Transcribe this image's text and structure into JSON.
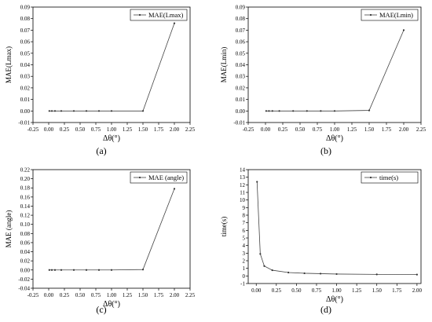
{
  "chart_data": [
    {
      "type": "line",
      "caption": "(a)",
      "xlabel": "Δθ(°)",
      "ylabel": "MAE(Lmax)",
      "legend": "MAE(Lmax)",
      "legend_position": "top-right",
      "xlim": [
        -0.25,
        2.25
      ],
      "ylim": [
        -0.01,
        0.09
      ],
      "xticks": [
        -0.25,
        0,
        0.25,
        0.5,
        0.75,
        1,
        1.25,
        1.5,
        1.75,
        2,
        2.25
      ],
      "xtick_labels": [
        "-0.25",
        "0.00",
        "0.25",
        "0.50",
        "0.75",
        "1.00",
        "1.25",
        "1.50",
        "1.75",
        "2.00",
        "2.25"
      ],
      "yticks": [
        -0.01,
        0,
        0.01,
        0.02,
        0.03,
        0.04,
        0.05,
        0.06,
        0.07,
        0.08,
        0.09
      ],
      "ytick_labels": [
        "-0.01",
        "0.00",
        "0.01",
        "0.02",
        "0.03",
        "0.04",
        "0.05",
        "0.06",
        "0.07",
        "0.08",
        "0.09"
      ],
      "x": [
        0.01,
        0.05,
        0.1,
        0.2,
        0.4,
        0.6,
        0.8,
        1.0,
        1.5,
        2.0
      ],
      "y": [
        0,
        0,
        0,
        0,
        0,
        0,
        0,
        0,
        0,
        0.076
      ],
      "grid": false
    },
    {
      "type": "line",
      "caption": "(b)",
      "xlabel": "Δθ(°)",
      "ylabel": "MAE(Lmin)",
      "legend": "MAE(Lmin)",
      "legend_position": "top-right",
      "xlim": [
        -0.25,
        2.25
      ],
      "ylim": [
        -0.01,
        0.09
      ],
      "xticks": [
        -0.25,
        0,
        0.25,
        0.5,
        0.75,
        1,
        1.25,
        1.5,
        1.75,
        2,
        2.25
      ],
      "xtick_labels": [
        "-0.25",
        "0.00",
        "0.25",
        "0.50",
        "0.75",
        "1.00",
        "1.25",
        "1.50",
        "1.75",
        "2.00",
        "2.25"
      ],
      "yticks": [
        -0.01,
        0,
        0.01,
        0.02,
        0.03,
        0.04,
        0.05,
        0.06,
        0.07,
        0.08,
        0.09
      ],
      "ytick_labels": [
        "-0.01",
        "0.00",
        "0.01",
        "0.02",
        "0.03",
        "0.04",
        "0.05",
        "0.06",
        "0.07",
        "0.08",
        "0.09"
      ],
      "x": [
        0.01,
        0.05,
        0.1,
        0.2,
        0.4,
        0.6,
        0.8,
        1.0,
        1.5,
        2.0
      ],
      "y": [
        0,
        0,
        0,
        0,
        0,
        0,
        0,
        0,
        0.0005,
        0.07
      ],
      "grid": false
    },
    {
      "type": "line",
      "caption": "(c)",
      "xlabel": "Δθ(°)",
      "ylabel": "MAE (angle)",
      "legend": "MAE (angle)",
      "legend_position": "top-right",
      "xlim": [
        -0.25,
        2.25
      ],
      "ylim": [
        -0.04,
        0.22
      ],
      "xticks": [
        -0.25,
        0,
        0.25,
        0.5,
        0.75,
        1,
        1.25,
        1.5,
        1.75,
        2,
        2.25
      ],
      "xtick_labels": [
        "-0.25",
        "0.00",
        "0.25",
        "0.50",
        "0.75",
        "1.00",
        "1.25",
        "1.50",
        "1.75",
        "2.00",
        "2.25"
      ],
      "yticks": [
        -0.04,
        -0.02,
        0,
        0.02,
        0.04,
        0.06,
        0.08,
        0.1,
        0.12,
        0.14,
        0.16,
        0.18,
        0.2,
        0.22
      ],
      "ytick_labels": [
        "-0.04",
        "-0.02",
        "0.00",
        "0.02",
        "0.04",
        "0.06",
        "0.08",
        "0.10",
        "0.12",
        "0.14",
        "0.16",
        "0.18",
        "0.20",
        "0.22"
      ],
      "x": [
        0.01,
        0.05,
        0.1,
        0.2,
        0.4,
        0.6,
        0.8,
        1.0,
        1.5,
        2.0
      ],
      "y": [
        0,
        0,
        0,
        0,
        0,
        0,
        0,
        0,
        0.001,
        0.178
      ],
      "grid": false
    },
    {
      "type": "line",
      "caption": "(d)",
      "xlabel": "Δθ(°)",
      "ylabel": "time(s)",
      "legend": "time(s)",
      "legend_position": "top-right",
      "xlim": [
        -0.1,
        2.05
      ],
      "ylim": [
        -1,
        14
      ],
      "xticks": [
        0,
        0.25,
        0.5,
        0.75,
        1,
        1.25,
        1.5,
        1.75,
        2
      ],
      "xtick_labels": [
        "0.00",
        "0.25",
        "0.50",
        "0.75",
        "1.00",
        "1.25",
        "1.50",
        "1.75",
        "2.00"
      ],
      "yticks": [
        -1,
        0,
        1,
        2,
        3,
        4,
        5,
        6,
        7,
        8,
        9,
        10,
        11,
        12,
        13,
        14
      ],
      "ytick_labels": [
        "-1",
        "0",
        "1",
        "2",
        "3",
        "4",
        "5",
        "6",
        "7",
        "8",
        "9",
        "10",
        "11",
        "12",
        "13",
        "14"
      ],
      "x": [
        0.01,
        0.05,
        0.1,
        0.2,
        0.4,
        0.6,
        0.8,
        1.0,
        1.5,
        2.0
      ],
      "y": [
        12.4,
        2.9,
        1.3,
        0.75,
        0.45,
        0.35,
        0.3,
        0.25,
        0.2,
        0.18
      ],
      "grid": false
    }
  ]
}
